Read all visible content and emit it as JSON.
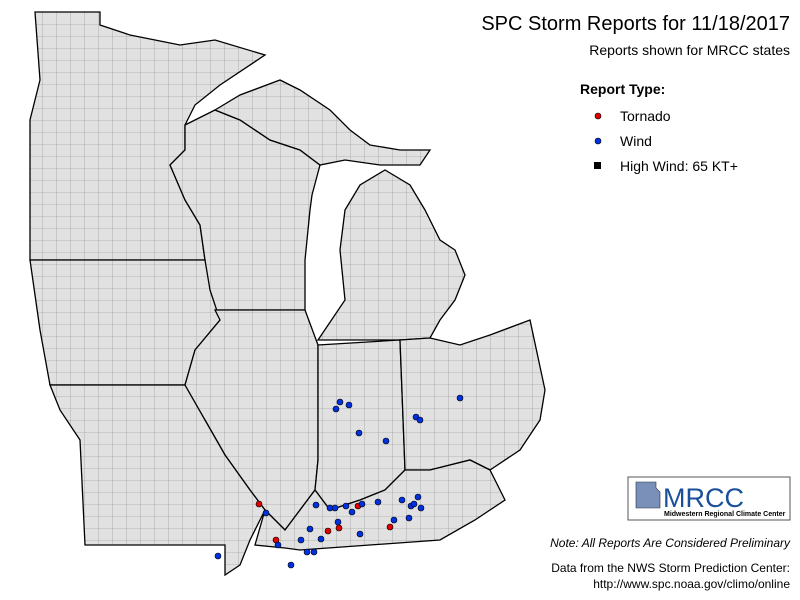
{
  "title": "SPC Storm Reports for 11/18/2017",
  "subtitle": "Reports shown for MRCC states",
  "legend": {
    "title": "Report Type:",
    "items": [
      "Tornado",
      "Wind",
      "High Wind: 65 KT+"
    ]
  },
  "logo": {
    "name": "MRCC",
    "full_name": "Midwestern Regional Climate Center"
  },
  "note": "Note: All Reports Are Considered Preliminary",
  "source": [
    "Data from the NWS Storm Prediction Center:",
    "http://www.spc.noaa.gov/climo/online"
  ]
}
